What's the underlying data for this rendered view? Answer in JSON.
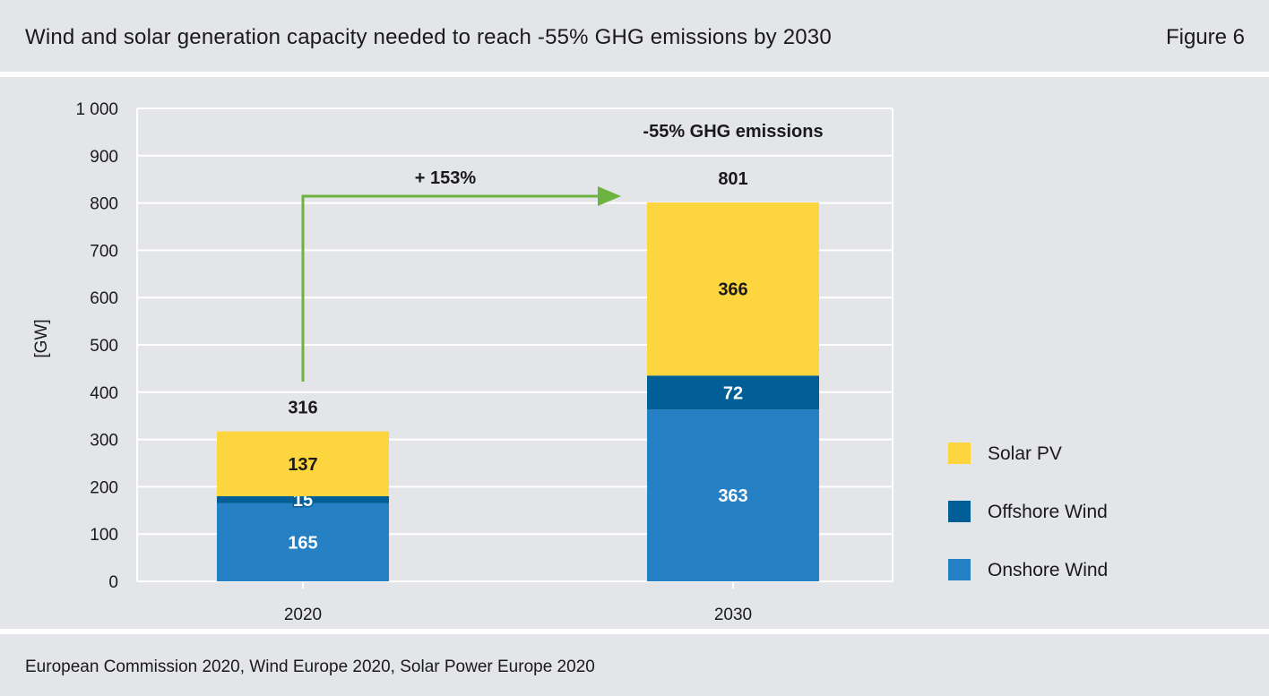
{
  "header": {
    "title": "Wind and solar generation capacity needed to reach -55% GHG emissions by 2030",
    "figure_label": "Figure 6"
  },
  "footer": {
    "source": "European Commission 2020, Wind Europe 2020, Solar Power Europe 2020"
  },
  "chart_data": {
    "type": "bar",
    "stacked": true,
    "categories": [
      "2020",
      "2030"
    ],
    "series": [
      {
        "name": "Onshore Wind",
        "values": [
          165,
          363
        ],
        "color": "#2581c4",
        "label_color": "#ffffff"
      },
      {
        "name": "Offshore Wind",
        "values": [
          15,
          72
        ],
        "color": "#025e96",
        "label_color": "#ffffff"
      },
      {
        "name": "Solar PV",
        "values": [
          137,
          366
        ],
        "color": "#fdd53f",
        "label_color": "#1a1a1a"
      }
    ],
    "totals": [
      316,
      801
    ],
    "ylabel": "[GW]",
    "xlabel": "",
    "ylim": [
      0,
      1000
    ],
    "yticks": [
      0,
      100,
      200,
      300,
      400,
      500,
      600,
      700,
      800,
      900,
      1000
    ],
    "ytick_labels": [
      "0",
      "100",
      "200",
      "300",
      "400",
      "500",
      "600",
      "700",
      "800",
      "900",
      "1 000"
    ],
    "grid": true,
    "legend_position": "right",
    "legend_order": [
      "Solar PV",
      "Offshore Wind",
      "Onshore Wind"
    ],
    "annotations": {
      "growth": "+ 153%",
      "target": "-55% GHG emissions",
      "arrow_color": "#6cb33f"
    }
  }
}
